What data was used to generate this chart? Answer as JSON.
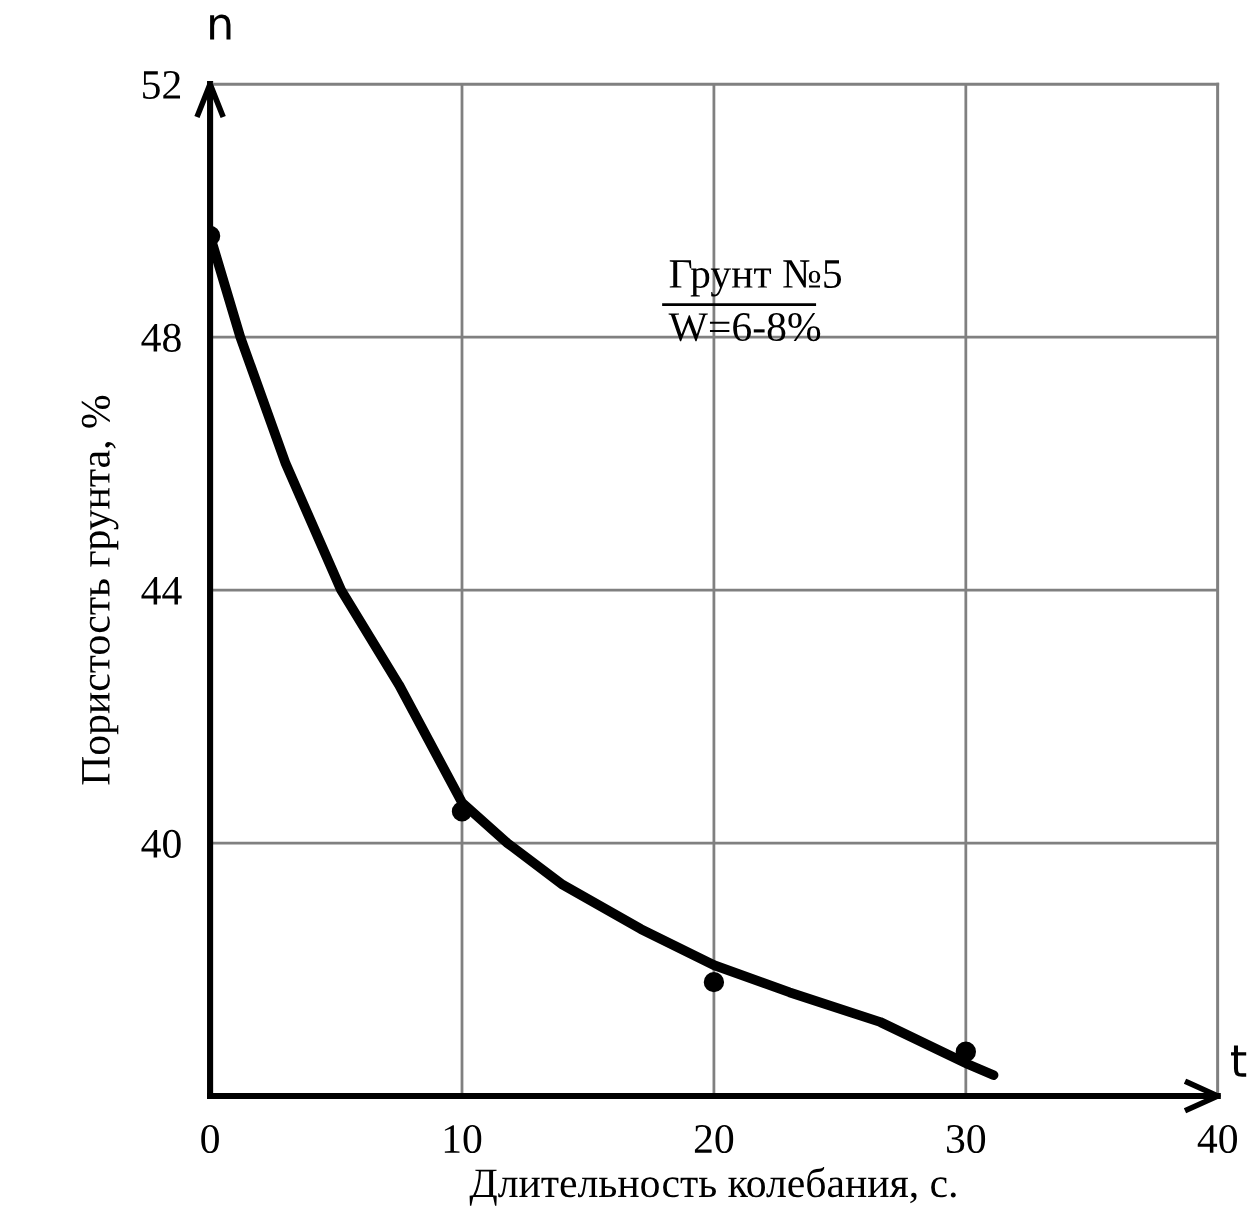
{
  "chart_data": {
    "type": "scatter",
    "xlabel": "Длительность колебания, с.",
    "ylabel": "Пористость грунта, %",
    "annotations": [
      "Грунт №5",
      "W=6-8%",
      "n",
      "t"
    ],
    "series": [
      {
        "color": "#000000",
        "x": [
          0,
          10,
          20,
          30
        ],
        "values": [
          49.6,
          40.5,
          37.8,
          36.7
        ]
      },
      {
        "type": "line",
        "marker": "none",
        "color": "#000000",
        "x": [
          0,
          1.2,
          3,
          5.2,
          7.5,
          10,
          11.8,
          14,
          17.1,
          20,
          23,
          26.6,
          30.1,
          31.1
        ],
        "values": [
          49.6,
          48,
          46,
          44,
          42.5,
          40.64,
          40,
          39.34,
          38.64,
          38.07,
          37.64,
          37.17,
          36.5,
          36.33
        ]
      }
    ],
    "xlim": [
      0,
      40
    ],
    "ylim": [
      36,
      52
    ],
    "xticks": [
      0,
      10,
      20,
      30,
      40
    ],
    "yticks": [
      40,
      44,
      48,
      52
    ],
    "grid": true,
    "marker": "circle",
    "line_style": "solid"
  }
}
